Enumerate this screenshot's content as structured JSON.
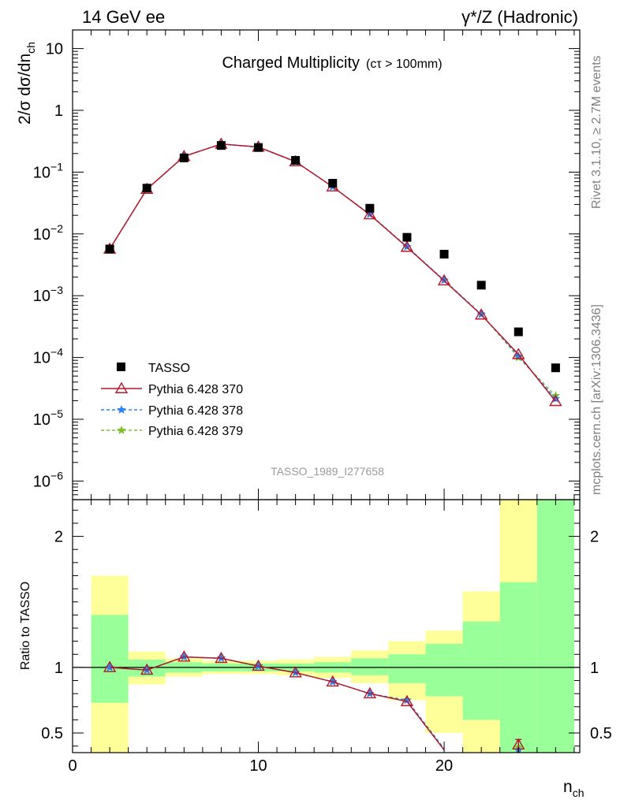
{
  "header": {
    "energy_label": "14 GeV ee",
    "process_label": "γ*/Z (Hadronic)",
    "side_rivet": "Rivet 3.1.10, ≥ 2.7M events",
    "side_mcplots": "mcplots.cern.ch [arXiv:1306.3436]"
  },
  "chart_data": [
    {
      "type": "scatter",
      "title": "Charged Multiplicity",
      "title_suffix": "(cτ > 100mm)",
      "analysis_label": "TASSO_1989_I277658",
      "ylabel": "2/σ dσ/dn",
      "ylabel_sub": "ch",
      "xlabel": "n",
      "xlabel_sub": "ch",
      "y_scale": "log",
      "ylim": [
        5e-07,
        20
      ],
      "xlim": [
        0,
        27.3
      ],
      "y_tick_labels": [
        {
          "value": 10,
          "base": "10",
          "exp": ""
        },
        {
          "value": 1,
          "base": "1",
          "exp": ""
        },
        {
          "value": 0.1,
          "base": "10",
          "exp": "−1"
        },
        {
          "value": 0.01,
          "base": "10",
          "exp": "−2"
        },
        {
          "value": 0.001,
          "base": "10",
          "exp": "−3"
        },
        {
          "value": 0.0001,
          "base": "10",
          "exp": "−4"
        },
        {
          "value": 1e-05,
          "base": "10",
          "exp": "−5"
        },
        {
          "value": 1e-06,
          "base": "10",
          "exp": "−6"
        }
      ],
      "legend_position": "lower-left",
      "series": [
        {
          "name": "TASSO",
          "style": "data",
          "color": "#000000",
          "x": [
            2,
            4,
            6,
            8,
            10,
            12,
            14,
            16,
            18,
            20,
            22,
            24,
            26
          ],
          "y": [
            0.0057,
            0.055,
            0.17,
            0.27,
            0.25,
            0.155,
            0.066,
            0.026,
            0.0088,
            0.0047,
            0.00148,
            0.00026,
            6.8e-05
          ]
        },
        {
          "name": "Pythia 6.428 370",
          "style": "solid-triangle",
          "color": "#b2182b",
          "x": [
            2,
            4,
            6,
            8,
            10,
            12,
            14,
            16,
            18,
            20,
            22,
            24,
            26
          ],
          "y": [
            0.0057,
            0.053,
            0.18,
            0.285,
            0.255,
            0.148,
            0.058,
            0.0205,
            0.0061,
            0.00175,
            0.00049,
            0.000112,
            1.95e-05
          ]
        },
        {
          "name": "Pythia 6.428 378",
          "style": "dashed-star",
          "color": "#2b83f6",
          "x": [
            2,
            4,
            6,
            8,
            10,
            12,
            14,
            16,
            18,
            20,
            22,
            24,
            26
          ],
          "y": [
            0.0057,
            0.053,
            0.18,
            0.283,
            0.253,
            0.147,
            0.058,
            0.0208,
            0.0062,
            0.00178,
            0.0005,
            0.000105,
            2.15e-05
          ]
        },
        {
          "name": "Pythia 6.428 379",
          "style": "dashed-star",
          "color": "#7fbf2a",
          "x": [
            2,
            4,
            6,
            8,
            10,
            12,
            14,
            16,
            18,
            20,
            22,
            24,
            26
          ],
          "y": [
            0.0057,
            0.053,
            0.18,
            0.283,
            0.253,
            0.147,
            0.058,
            0.0208,
            0.0062,
            0.00178,
            0.0005,
            0.0001,
            2.4e-05
          ]
        }
      ]
    },
    {
      "type": "line",
      "ylabel": "Ratio to TASSO",
      "xlabel": "n",
      "xlabel_sub": "ch",
      "ylim": [
        0.35,
        2.28
      ],
      "xlim": [
        0,
        27.3
      ],
      "x_tick_labels": [
        "0",
        "10",
        "20"
      ],
      "y_tick_labels": [
        "0.5",
        "1",
        "2"
      ],
      "y_ticks": [
        0.5,
        1,
        2
      ],
      "reference_line": 1,
      "bands": [
        {
          "x0": 1,
          "x1": 3,
          "green_lo": 0.73,
          "green_hi": 1.4,
          "yellow_lo": 0.35,
          "yellow_hi": 1.7
        },
        {
          "x0": 3,
          "x1": 5,
          "green_lo": 0.93,
          "green_hi": 1.06,
          "yellow_lo": 0.87,
          "yellow_hi": 1.12
        },
        {
          "x0": 5,
          "x1": 7,
          "green_lo": 0.96,
          "green_hi": 1.04,
          "yellow_lo": 0.93,
          "yellow_hi": 1.07
        },
        {
          "x0": 7,
          "x1": 9,
          "green_lo": 0.97,
          "green_hi": 1.03,
          "yellow_lo": 0.95,
          "yellow_hi": 1.05
        },
        {
          "x0": 9,
          "x1": 11,
          "green_lo": 0.97,
          "green_hi": 1.03,
          "yellow_lo": 0.95,
          "yellow_hi": 1.05
        },
        {
          "x0": 11,
          "x1": 13,
          "green_lo": 0.97,
          "green_hi": 1.03,
          "yellow_lo": 0.94,
          "yellow_hi": 1.06
        },
        {
          "x0": 13,
          "x1": 15,
          "green_lo": 0.96,
          "green_hi": 1.04,
          "yellow_lo": 0.92,
          "yellow_hi": 1.08
        },
        {
          "x0": 15,
          "x1": 17,
          "green_lo": 0.94,
          "green_hi": 1.07,
          "yellow_lo": 0.88,
          "yellow_hi": 1.13
        },
        {
          "x0": 17,
          "x1": 19,
          "green_lo": 0.88,
          "green_hi": 1.1,
          "yellow_lo": 0.75,
          "yellow_hi": 1.2
        },
        {
          "x0": 19,
          "x1": 21,
          "green_lo": 0.78,
          "green_hi": 1.18,
          "yellow_lo": 0.5,
          "yellow_hi": 1.28
        },
        {
          "x0": 21,
          "x1": 23,
          "green_lo": 0.6,
          "green_hi": 1.35,
          "yellow_lo": 0.35,
          "yellow_hi": 1.58
        },
        {
          "x0": 23,
          "x1": 25,
          "green_lo": 0.35,
          "green_hi": 1.65,
          "yellow_lo": 0.35,
          "yellow_hi": 2.28
        },
        {
          "x0": 25,
          "x1": 27,
          "green_lo": 0.35,
          "green_hi": 2.28,
          "yellow_lo": 0.35,
          "yellow_hi": 2.28
        }
      ],
      "series": [
        {
          "name": "Pythia 6.428 370",
          "style": "solid-triangle",
          "color": "#b2182b",
          "x": [
            2,
            4,
            6,
            8,
            10,
            12,
            14,
            16,
            18,
            20,
            24
          ],
          "y": [
            1.0,
            0.98,
            1.08,
            1.07,
            1.01,
            0.96,
            0.89,
            0.8,
            0.74,
            0.37,
            0.41
          ],
          "drawn_points": 9
        },
        {
          "name": "Pythia 6.428 378",
          "style": "dashed-star",
          "color": "#2b83f6",
          "x": [
            2,
            4,
            6,
            8,
            10,
            12,
            14,
            16,
            18,
            20,
            24
          ],
          "y": [
            1.0,
            0.98,
            1.08,
            1.07,
            1.01,
            0.96,
            0.89,
            0.8,
            0.75,
            0.38,
            0.37
          ],
          "drawn_points": 9
        },
        {
          "name": "Pythia 6.428 379",
          "style": "dashed-star",
          "color": "#7fbf2a",
          "x": [
            2,
            4,
            6,
            8,
            10,
            12,
            14,
            16,
            18,
            20,
            24
          ],
          "y": [
            1.0,
            0.98,
            1.08,
            1.07,
            1.01,
            0.96,
            0.89,
            0.8,
            0.75,
            0.38,
            0.39
          ],
          "drawn_points": 9
        }
      ]
    }
  ]
}
